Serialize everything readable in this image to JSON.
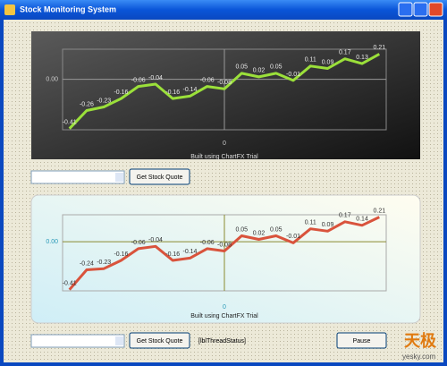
{
  "window": {
    "title": "Stock Monitoring System"
  },
  "charts": [
    {
      "type": "line",
      "color": "#9be03a",
      "label_color": "#e8e8e8",
      "x": [
        -9,
        -8,
        -7,
        -6,
        -5,
        -4,
        -3,
        -2,
        -1,
        0,
        1,
        2,
        3,
        4,
        5,
        6,
        7,
        8,
        9
      ],
      "values": [
        -0.41,
        -0.26,
        -0.23,
        -0.16,
        -0.06,
        -0.04,
        -0.16,
        -0.14,
        -0.06,
        -0.08,
        0.05,
        0.02,
        0.05,
        -0.01,
        0.11,
        0.09,
        0.17,
        0.13,
        0.21
      ],
      "xlim": [
        -9.4,
        9.4
      ],
      "ylim": [
        -0.42,
        0.25
      ],
      "xticks": [
        0
      ],
      "yticks": [
        {
          "value": 0,
          "label": "0.00"
        }
      ],
      "footer": "Built using ChartFX Trial"
    },
    {
      "type": "line",
      "color": "#d9533c",
      "label_color": "#333333",
      "x": [
        -9,
        -8,
        -7,
        -6,
        -5,
        -4,
        -3,
        -2,
        -1,
        0,
        1,
        2,
        3,
        4,
        5,
        6,
        7,
        8,
        9
      ],
      "values": [
        -0.41,
        -0.24,
        -0.23,
        -0.16,
        -0.06,
        -0.04,
        -0.16,
        -0.14,
        -0.06,
        -0.08,
        0.05,
        0.02,
        0.05,
        -0.01,
        0.11,
        0.09,
        0.17,
        0.14,
        0.21
      ],
      "xlim": [
        -9.4,
        9.4
      ],
      "ylim": [
        -0.42,
        0.23
      ],
      "xticks": [
        0
      ],
      "yticks": [
        {
          "value": 0,
          "label": "0.00"
        }
      ],
      "footer": "Built using ChartFX Trial"
    }
  ],
  "controls": {
    "quote_button_top": "Get Stock Quote",
    "quote_button_bottom": "Get Stock Quote",
    "status_label": "[lblThreadStatus]",
    "pause_button": "Pause"
  },
  "watermark": {
    "logo": "天极",
    "site": "yesky.com"
  }
}
